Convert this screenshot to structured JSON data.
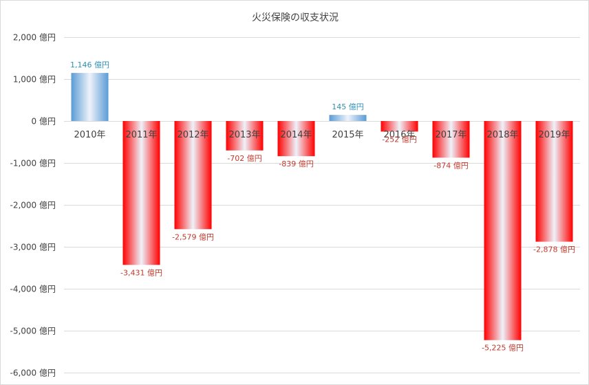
{
  "chart_data": {
    "type": "bar",
    "title": "火災保険の収支状況",
    "xlabel": "",
    "ylabel": "",
    "categories": [
      "2010年",
      "2011年",
      "2012年",
      "2013年",
      "2014年",
      "2015年",
      "2016年",
      "2017年",
      "2018年",
      "2019年"
    ],
    "values": [
      1146,
      -3431,
      -2579,
      -702,
      -839,
      145,
      -252,
      -874,
      -5225,
      -2878
    ],
    "data_labels": [
      "1,146 億円",
      "-3,431 億円",
      "-2,579 億円",
      "-702 億円",
      "-839 億円",
      "145 億円",
      "-252 億円",
      "-874 億円",
      "-5,225 億円",
      "-2,878 億円"
    ],
    "ylim": [
      -6000,
      2000
    ],
    "y_ticks": [
      2000,
      1000,
      0,
      -1000,
      -2000,
      -3000,
      -4000,
      -5000,
      -6000
    ],
    "y_tick_labels": [
      "2,000 億円",
      "1,000 億円",
      "0 億円",
      "-1,000 億円",
      "-2,000 億円",
      "-3,000 億円",
      "-4,000 億円",
      "-5,000 億円",
      "-6,000 億円"
    ],
    "grid": true,
    "legend": "none",
    "colors": {
      "positive": "#5b9bd5",
      "negative": "#ff0000",
      "positive_label": "#2e8fb3",
      "negative_label": "#c0392b",
      "grid": "#d9d9d9",
      "axis_text": "#404040"
    }
  }
}
